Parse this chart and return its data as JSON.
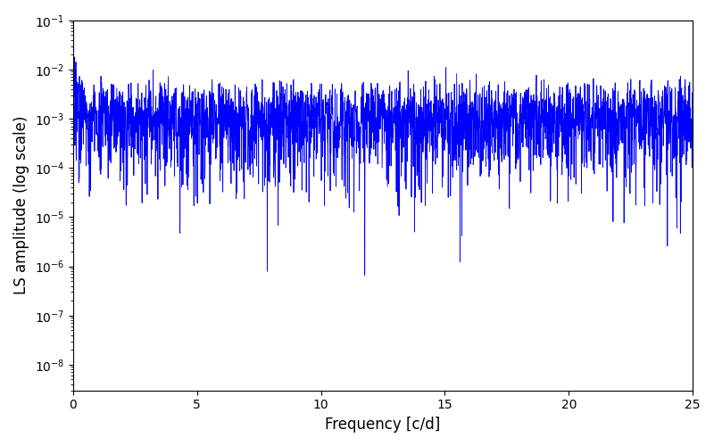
{
  "line_color": "#0000FF",
  "line_width": 0.6,
  "xlabel": "Frequency [c/d]",
  "ylabel": "LS amplitude (log scale)",
  "xlim": [
    0,
    25
  ],
  "ylim": [
    3e-09,
    0.1
  ],
  "xticks": [
    0,
    5,
    10,
    15,
    20,
    25
  ],
  "background_color": "#ffffff",
  "seed": 42,
  "n_freq": 3000,
  "n_time": 1500,
  "time_span": 500
}
